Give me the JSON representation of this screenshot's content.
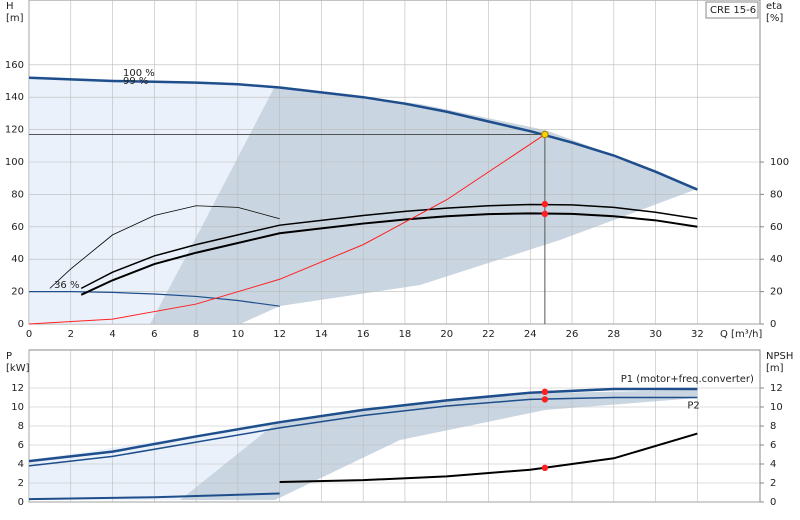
{
  "chart_data": [
    {
      "type": "line",
      "y_label": "H",
      "y_unit": "[m]",
      "y2_label": "eta",
      "y2_unit": "[%]",
      "x_label": "Q [m³/h]",
      "legend_box": "CRE 15-6",
      "xlim": [
        0,
        35
      ],
      "xticks": [
        0,
        2,
        4,
        6,
        8,
        10,
        12,
        14,
        16,
        18,
        20,
        22,
        24,
        26,
        28,
        30,
        32
      ],
      "ylim": [
        0,
        200
      ],
      "yticks": [
        0,
        20,
        40,
        60,
        80,
        100,
        120,
        140,
        160
      ],
      "y2lim": [
        0,
        200
      ],
      "y2ticks": [
        0,
        20,
        40,
        60,
        80,
        100
      ],
      "grid": true,
      "series": [
        {
          "color": "#1f4e8c",
          "width": 2.5,
          "x": [
            0,
            2,
            4,
            6,
            8,
            10,
            12,
            14,
            16,
            18,
            20,
            22,
            24,
            26,
            28,
            30,
            32
          ],
          "values": [
            152,
            151,
            150,
            149.5,
            149,
            148,
            146,
            143,
            140,
            136,
            131,
            125,
            119,
            112,
            104,
            94,
            83
          ]
        },
        {
          "color": "#1f4e8c",
          "width": 1.2,
          "x": [
            0,
            2,
            4,
            6,
            8,
            10,
            12
          ],
          "values": [
            20,
            20,
            19.5,
            18.5,
            17,
            14.5,
            11
          ]
        },
        {
          "color": "#000000",
          "width": 1.5,
          "axis": "y2",
          "x": [
            2.5,
            4,
            6,
            8,
            10,
            12,
            14,
            16,
            18,
            20,
            22,
            24,
            26,
            28,
            30,
            32
          ],
          "values": [
            22,
            32,
            42,
            49,
            55,
            61,
            64,
            67,
            69.5,
            71.5,
            73,
            73.8,
            73.5,
            72,
            69,
            65
          ]
        },
        {
          "color": "#000000",
          "width": 2,
          "axis": "y2",
          "x": [
            2.5,
            4,
            6,
            8,
            10,
            12,
            14,
            16,
            18,
            20,
            22,
            24,
            26,
            28,
            30,
            32
          ],
          "values": [
            18,
            27,
            37,
            44,
            50,
            56,
            59,
            62,
            64.5,
            66.5,
            67.8,
            68.3,
            68,
            66.5,
            64,
            60
          ]
        },
        {
          "color": "#000000",
          "width": 0.8,
          "axis": "y2",
          "x": [
            1,
            2,
            4,
            6,
            8,
            10,
            12
          ],
          "values": [
            22,
            34,
            55,
            67,
            73,
            72,
            65
          ]
        },
        {
          "color": "#ff2020",
          "width": 1,
          "x": [
            0,
            4,
            8,
            12,
            16,
            20,
            24.7
          ],
          "values": [
            0,
            3,
            12.3,
            27.6,
            49,
            76.7,
            117
          ]
        }
      ],
      "points": [
        {
          "color": "#ffd400",
          "x": 24.7,
          "value": 117
        },
        {
          "color": "#ff2020",
          "x": 24.7,
          "value": 74
        },
        {
          "color": "#ff2020",
          "x": 24.7,
          "value": 68
        }
      ],
      "annotations": [
        {
          "text": "100 %",
          "x": 4.5,
          "y": 155
        },
        {
          "text": "99 %",
          "x": 4.5,
          "y": 150
        },
        {
          "text": "36 %",
          "x": 1.2,
          "y": 24
        }
      ]
    },
    {
      "type": "line",
      "y_label": "P",
      "y_unit": "[kW]",
      "y2_label": "NPSH",
      "y2_unit": "[m]",
      "xlim": [
        0,
        35
      ],
      "ylim": [
        0,
        16
      ],
      "yticks": [
        0,
        2,
        4,
        6,
        8,
        10,
        12
      ],
      "y2lim": [
        0,
        16
      ],
      "y2ticks": [
        0,
        2,
        4,
        6,
        8,
        10,
        12
      ],
      "grid": true,
      "series": [
        {
          "name": "P1 (motor+freq.converter)",
          "color": "#1f4e8c",
          "width": 2.5,
          "x": [
            0,
            4,
            8,
            12,
            16,
            20,
            24,
            28,
            32
          ],
          "values": [
            4.3,
            5.3,
            6.9,
            8.4,
            9.7,
            10.7,
            11.5,
            11.9,
            11.9
          ]
        },
        {
          "name": "P2",
          "color": "#1f4e8c",
          "width": 1.5,
          "x": [
            0,
            4,
            8,
            12,
            16,
            20,
            24,
            28,
            32
          ],
          "values": [
            3.8,
            4.8,
            6.3,
            7.8,
            9.1,
            10.1,
            10.8,
            11,
            11
          ]
        },
        {
          "color": "#000000",
          "width": 2,
          "axis": "y2",
          "x": [
            12,
            16,
            20,
            24,
            28,
            32
          ],
          "values": [
            2.1,
            2.3,
            2.7,
            3.4,
            4.6,
            7.2
          ]
        },
        {
          "color": "#1f4e8c",
          "width": 2,
          "x": [
            0,
            6,
            12
          ],
          "values": [
            0.3,
            0.5,
            0.9
          ]
        }
      ],
      "points": [
        {
          "color": "#ff2020",
          "x": 24.7,
          "value": 11.6
        },
        {
          "color": "#ff2020",
          "x": 24.7,
          "value": 10.8
        },
        {
          "color": "#ff2020",
          "x": 24.7,
          "value": 3.6
        }
      ]
    }
  ]
}
